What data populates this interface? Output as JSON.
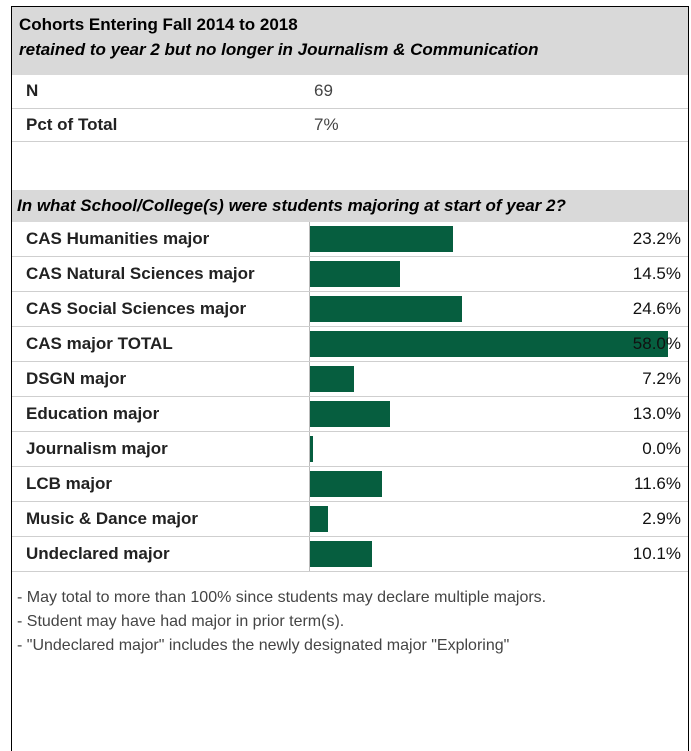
{
  "header": {
    "title": "Cohorts Entering Fall 2014 to 2018",
    "subtitle": "retained to year 2 but no longer in Journalism & Communication"
  },
  "stats": [
    {
      "label": "N",
      "value": "69"
    },
    {
      "label": "Pct of Total",
      "value": "7%"
    }
  ],
  "question": "In what School/College(s) were students majoring at start of year 2?",
  "chart_data": {
    "type": "bar",
    "orientation": "horizontal",
    "categories": [
      "CAS Humanities major",
      "CAS Natural Sciences major",
      "CAS Social Sciences major",
      "CAS major TOTAL",
      "DSGN major",
      "Education major",
      "Journalism major",
      "LCB major",
      "Music & Dance major",
      "Undeclared major"
    ],
    "values": [
      23.2,
      14.5,
      24.6,
      58.0,
      7.2,
      13.0,
      0.0,
      11.6,
      2.9,
      10.1
    ],
    "value_labels": [
      "23.2%",
      "14.5%",
      "24.6%",
      "58.0%",
      "7.2%",
      "13.0%",
      "0.0%",
      "11.6%",
      "2.9%",
      "10.1%"
    ],
    "xlim": [
      0,
      58
    ],
    "bar_color": "#065e3f",
    "grid": false
  },
  "notes": [
    "- May total to more than 100% since students may declare multiple majors.",
    "- Student may have had major in prior term(s).",
    "- \"Undeclared major\" includes the newly designated major \"Exploring\""
  ]
}
